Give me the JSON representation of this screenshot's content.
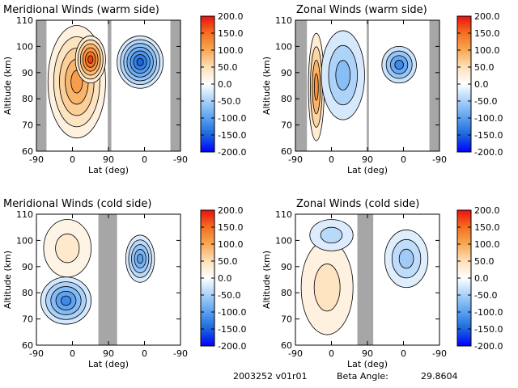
{
  "footer": {
    "run_id": "2003252 v01r01",
    "beta_label": "Beta Angle:",
    "beta_value": "29.8604"
  },
  "colorbar": {
    "ticks": [
      "200.0",
      "150.0",
      "100.0",
      "50.0",
      "0.0",
      "-50.0",
      "-100.0",
      "-150.0",
      "-200.0"
    ],
    "range": [
      -200,
      200
    ],
    "colors": [
      "#0000ff",
      "#1a66dd",
      "#5aa0f0",
      "#a8d0f8",
      "#ffffff",
      "#fde0b8",
      "#f9a855",
      "#f37020",
      "#ee1010"
    ]
  },
  "chart_data": [
    {
      "type": "heatmap",
      "title": "Meridional Winds (warm side)",
      "xlabel": "Lat (deg)",
      "ylabel": "Altitude (km)",
      "xticks": [
        "-90",
        "0",
        "90",
        "0",
        "-90"
      ],
      "yticks": [
        "60",
        "70",
        "80",
        "90",
        "100",
        "110"
      ],
      "ylim": [
        60,
        110
      ],
      "color_range": [
        -200,
        200
      ],
      "gray_bands": [
        [
          0,
          0.07
        ],
        [
          0.495,
          0.52
        ],
        [
          0.93,
          1.0
        ]
      ],
      "blobs": [
        {
          "x": [
            0.08,
            0.48
          ],
          "alt": [
            65,
            108
          ],
          "peak": 110,
          "levels": 5
        },
        {
          "x": [
            0.27,
            0.48
          ],
          "alt": [
            86,
            104
          ],
          "peak": 175,
          "levels": 6
        },
        {
          "x": [
            0.56,
            0.88
          ],
          "alt": [
            84,
            104
          ],
          "peak": -150,
          "levels": 7
        }
      ]
    },
    {
      "type": "heatmap",
      "title": "Zonal Winds (warm side)",
      "xlabel": "Lat (deg)",
      "ylabel": "Altitude (km)",
      "xticks": [
        "-90",
        "0",
        "90",
        "0",
        "-90"
      ],
      "yticks": [
        "60",
        "70",
        "80",
        "90",
        "100",
        "110"
      ],
      "ylim": [
        60,
        110
      ],
      "color_range": [
        -200,
        200
      ],
      "gray_bands": [
        [
          0,
          0.08
        ],
        [
          0.495,
          0.51
        ],
        [
          0.93,
          1.0
        ]
      ],
      "blobs": [
        {
          "x": [
            0.09,
            0.2
          ],
          "alt": [
            64,
            105
          ],
          "peak": 120,
          "levels": 4
        },
        {
          "x": [
            0.18,
            0.48
          ],
          "alt": [
            72,
            106
          ],
          "peak": -70,
          "levels": 3
        },
        {
          "x": [
            0.6,
            0.84
          ],
          "alt": [
            86,
            100
          ],
          "peak": -120,
          "levels": 4
        }
      ]
    },
    {
      "type": "heatmap",
      "title": "Meridional Winds (cold side)",
      "xlabel": "Lat (deg)",
      "ylabel": "Altitude (km)",
      "xticks": [
        "-90",
        "0",
        "90",
        "0",
        "-90"
      ],
      "yticks": [
        "60",
        "70",
        "80",
        "90",
        "100",
        "110"
      ],
      "ylim": [
        60,
        110
      ],
      "color_range": [
        -200,
        200
      ],
      "gray_bands": [
        [
          0.43,
          0.56
        ]
      ],
      "blobs": [
        {
          "x": [
            0.05,
            0.38
          ],
          "alt": [
            86,
            108
          ],
          "peak": 35,
          "levels": 2
        },
        {
          "x": [
            0.03,
            0.38
          ],
          "alt": [
            68,
            86
          ],
          "peak": -120,
          "levels": 5
        },
        {
          "x": [
            0.62,
            0.82
          ],
          "alt": [
            84,
            102
          ],
          "peak": -100,
          "levels": 5
        }
      ]
    },
    {
      "type": "heatmap",
      "title": "Zonal Winds (cold side)",
      "xlabel": "Lat (deg)",
      "ylabel": "Altitude (km)",
      "xticks": [
        "-90",
        "0",
        "90",
        "0",
        "-90"
      ],
      "yticks": [
        "60",
        "70",
        "80",
        "90",
        "100",
        "110"
      ],
      "ylim": [
        60,
        110
      ],
      "color_range": [
        -200,
        200
      ],
      "gray_bands": [
        [
          0.43,
          0.54
        ]
      ],
      "blobs": [
        {
          "x": [
            0.04,
            0.4
          ],
          "alt": [
            64,
            100
          ],
          "peak": 45,
          "levels": 2
        },
        {
          "x": [
            0.1,
            0.4
          ],
          "alt": [
            96,
            108
          ],
          "peak": -40,
          "levels": 2
        },
        {
          "x": [
            0.62,
            0.92
          ],
          "alt": [
            82,
            104
          ],
          "peak": -55,
          "levels": 3
        }
      ]
    }
  ]
}
